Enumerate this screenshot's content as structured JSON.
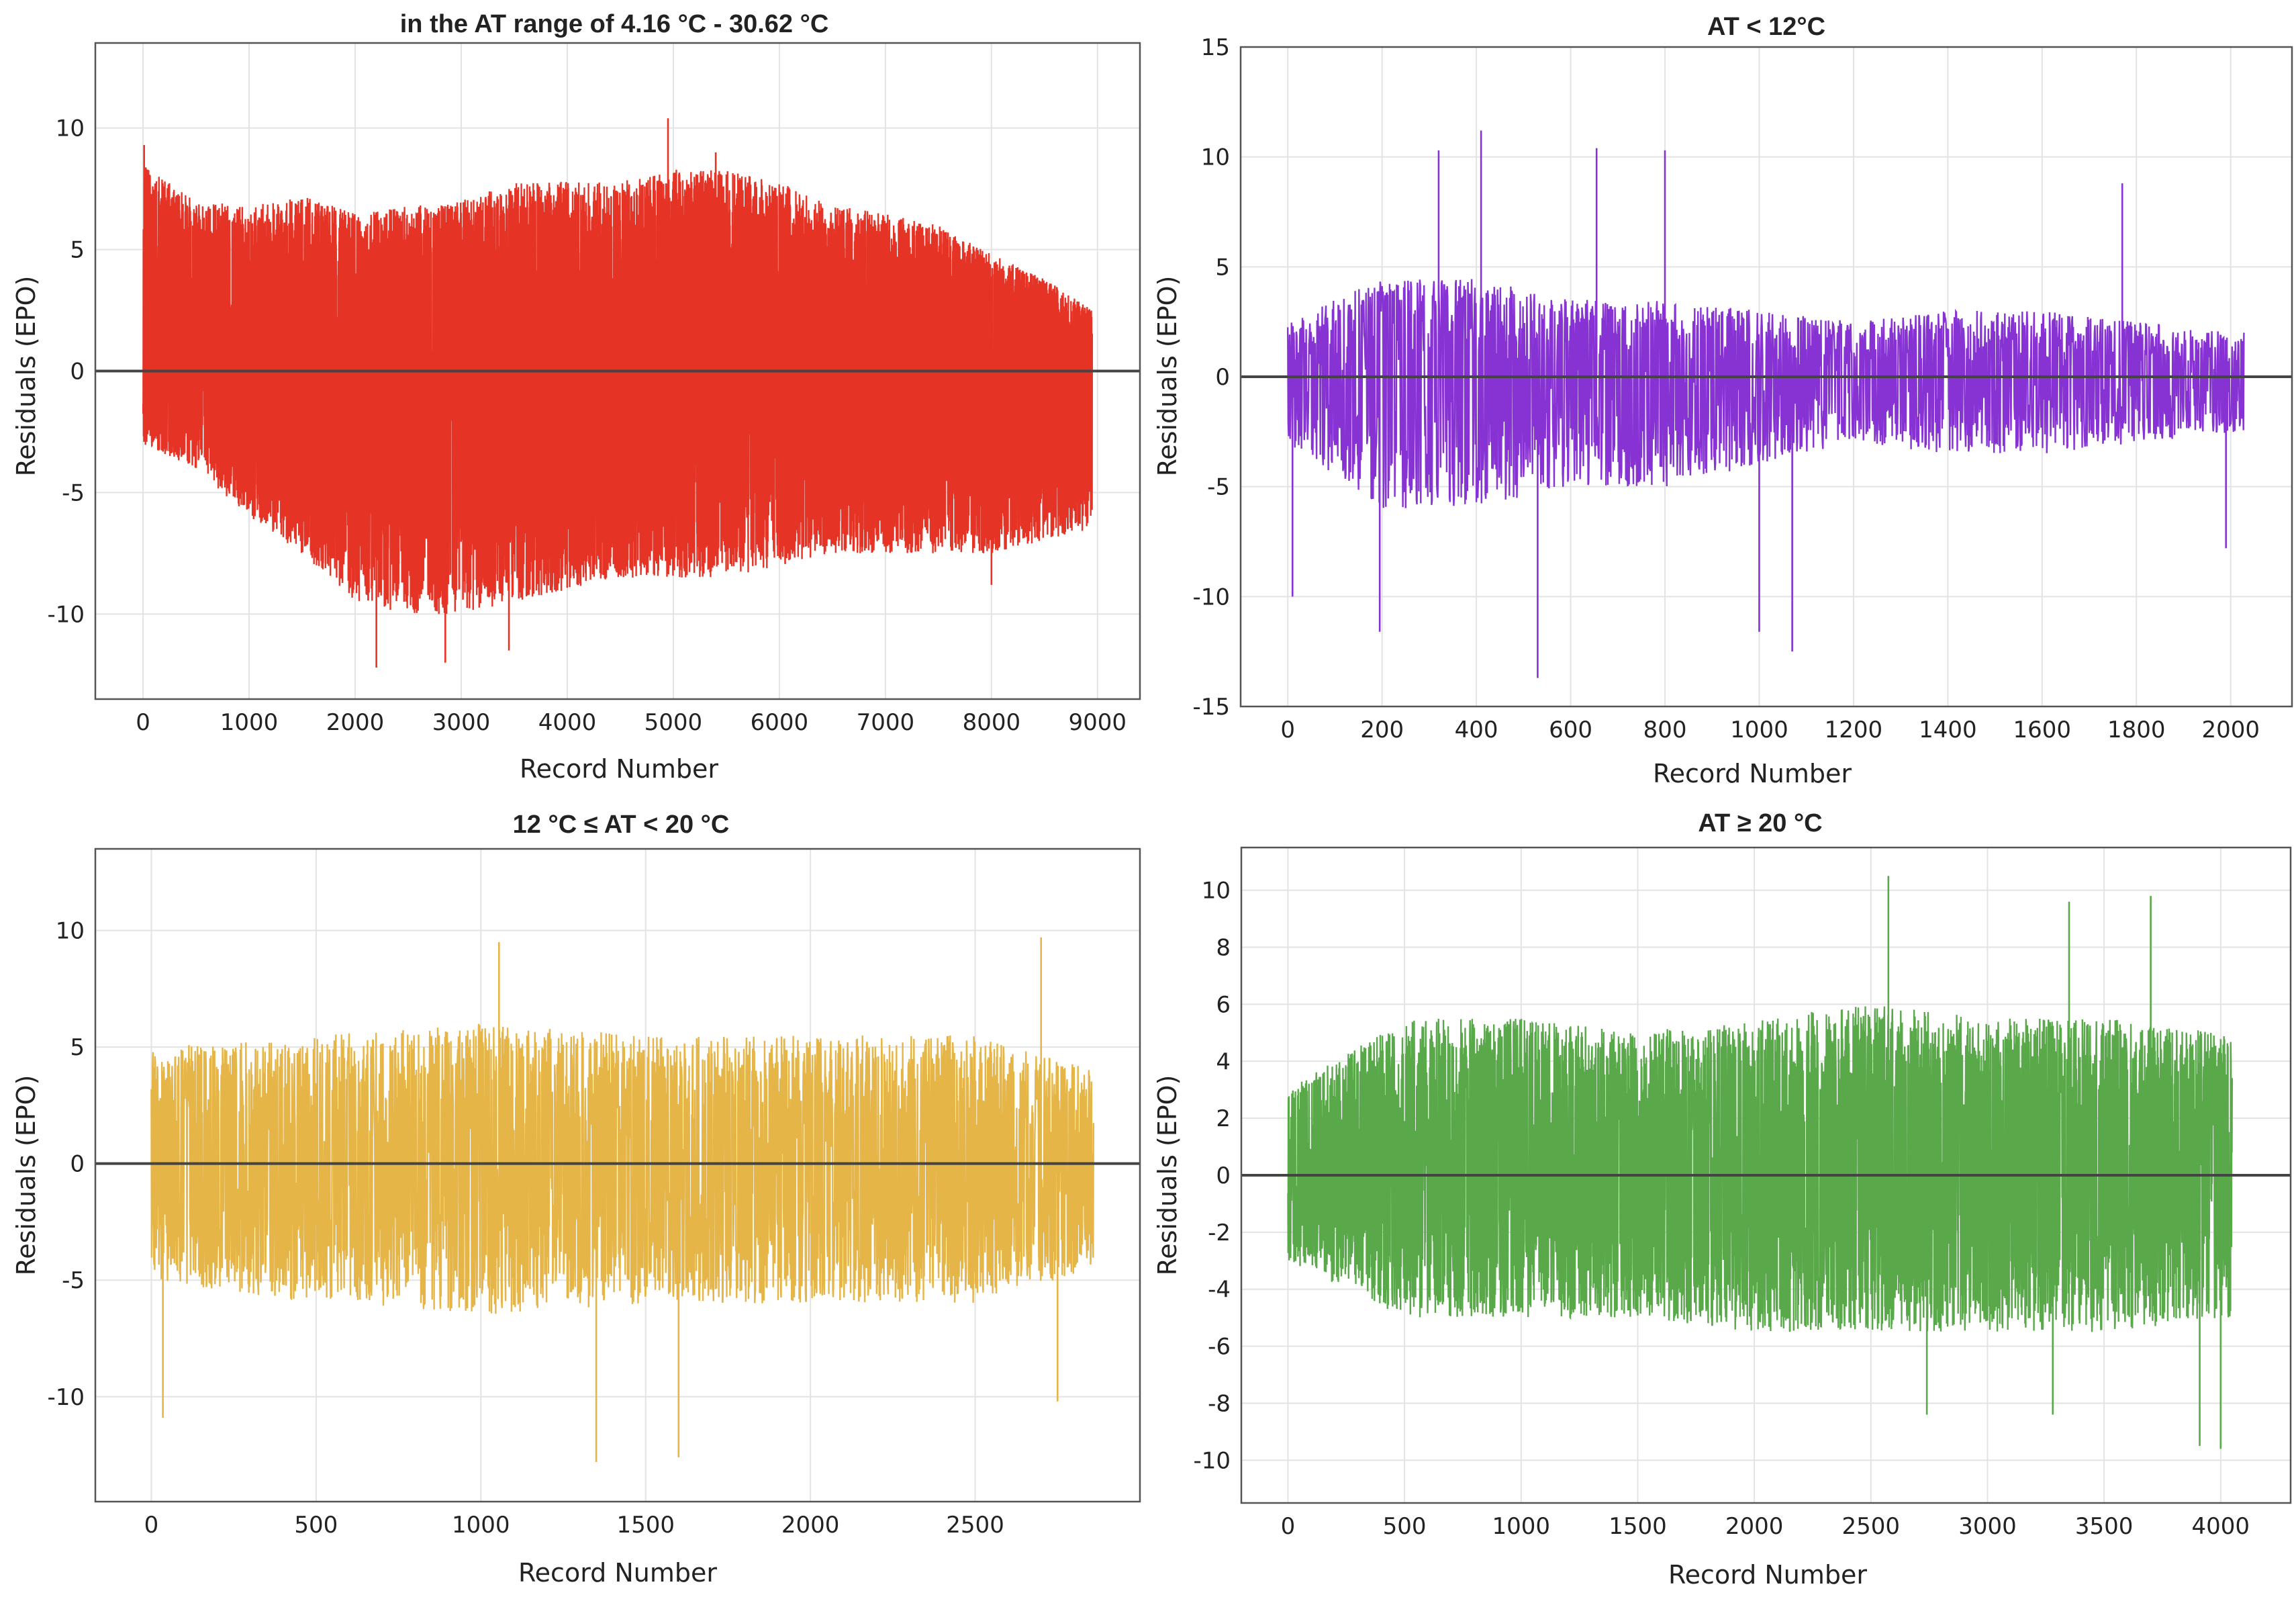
{
  "chart_data": [
    {
      "type": "line",
      "title": "in the AT range of 4.16 °C - 30.62 °C",
      "xlabel": "Record Number",
      "ylabel": "Residuals (EPO)",
      "color": "#E53326",
      "xlim": [
        -450,
        9400
      ],
      "ylim": [
        -13.5,
        13.5
      ],
      "xticks": [
        0,
        1000,
        2000,
        3000,
        4000,
        5000,
        6000,
        7000,
        8000,
        9000
      ],
      "yticks": [
        -10,
        -5,
        0,
        5,
        10
      ],
      "grid": true,
      "n_points": 8950,
      "density": 0.5,
      "envelope": [
        {
          "x": 0,
          "upper": 8.5,
          "lower": -3.0
        },
        {
          "x": 500,
          "upper": 7.0,
          "lower": -4.0
        },
        {
          "x": 1000,
          "upper": 6.8,
          "lower": -6.0
        },
        {
          "x": 1500,
          "upper": 7.2,
          "lower": -7.5
        },
        {
          "x": 2000,
          "upper": 6.5,
          "lower": -9.5
        },
        {
          "x": 2500,
          "upper": 6.8,
          "lower": -10.0
        },
        {
          "x": 3000,
          "upper": 7.0,
          "lower": -10.0
        },
        {
          "x": 3500,
          "upper": 7.8,
          "lower": -9.5
        },
        {
          "x": 4000,
          "upper": 7.8,
          "lower": -9.0
        },
        {
          "x": 4500,
          "upper": 7.8,
          "lower": -8.5
        },
        {
          "x": 5000,
          "upper": 8.3,
          "lower": -8.5
        },
        {
          "x": 5500,
          "upper": 8.3,
          "lower": -8.5
        },
        {
          "x": 6000,
          "upper": 7.8,
          "lower": -8.0
        },
        {
          "x": 6500,
          "upper": 6.8,
          "lower": -7.5
        },
        {
          "x": 7000,
          "upper": 6.5,
          "lower": -7.5
        },
        {
          "x": 7500,
          "upper": 6.0,
          "lower": -7.5
        },
        {
          "x": 8000,
          "upper": 4.8,
          "lower": -7.5
        },
        {
          "x": 8500,
          "upper": 3.8,
          "lower": -7.0
        },
        {
          "x": 8950,
          "upper": 2.5,
          "lower": -6.5
        }
      ],
      "extremes": [
        {
          "x": 10,
          "y": 9.3
        },
        {
          "x": 2200,
          "y": -12.2
        },
        {
          "x": 2850,
          "y": -12.0
        },
        {
          "x": 3450,
          "y": -11.5
        },
        {
          "x": 4950,
          "y": 10.4
        },
        {
          "x": 5400,
          "y": 9.0
        },
        {
          "x": 8000,
          "y": -8.8
        }
      ]
    },
    {
      "type": "line",
      "title": "AT < 12°C",
      "xlabel": "Record Number",
      "ylabel": "Residuals (EPO)",
      "color": "#8733D3",
      "xlim": [
        -100,
        2130
      ],
      "ylim": [
        -15,
        15
      ],
      "xticks": [
        0,
        200,
        400,
        600,
        800,
        1000,
        1200,
        1400,
        1600,
        1800,
        2000
      ],
      "yticks": [
        -15,
        -10,
        -5,
        0,
        5,
        10,
        15
      ],
      "grid": true,
      "n_points": 2030,
      "density": 0.55,
      "envelope": [
        {
          "x": 0,
          "upper": 2.5,
          "lower": -3.0
        },
        {
          "x": 200,
          "upper": 4.5,
          "lower": -6.0
        },
        {
          "x": 400,
          "upper": 4.5,
          "lower": -6.0
        },
        {
          "x": 600,
          "upper": 3.5,
          "lower": -5.0
        },
        {
          "x": 800,
          "upper": 3.5,
          "lower": -5.0
        },
        {
          "x": 1000,
          "upper": 3.0,
          "lower": -4.0
        },
        {
          "x": 1200,
          "upper": 2.5,
          "lower": -3.0
        },
        {
          "x": 1400,
          "upper": 3.0,
          "lower": -3.5
        },
        {
          "x": 1600,
          "upper": 3.0,
          "lower": -3.5
        },
        {
          "x": 1800,
          "upper": 2.5,
          "lower": -3.0
        },
        {
          "x": 2030,
          "upper": 2.0,
          "lower": -2.5
        }
      ],
      "extremes": [
        {
          "x": 10,
          "y": -10.0
        },
        {
          "x": 195,
          "y": -11.6
        },
        {
          "x": 320,
          "y": 10.3
        },
        {
          "x": 410,
          "y": 11.2
        },
        {
          "x": 530,
          "y": -13.7
        },
        {
          "x": 655,
          "y": 10.4
        },
        {
          "x": 800,
          "y": 10.3
        },
        {
          "x": 1000,
          "y": -11.6
        },
        {
          "x": 1070,
          "y": -12.5
        },
        {
          "x": 1770,
          "y": 8.8
        },
        {
          "x": 1990,
          "y": -7.8
        }
      ]
    },
    {
      "type": "line",
      "title": "12 °C ≤ AT < 20 °C",
      "xlabel": "Record Number",
      "ylabel": "Residuals (EPO)",
      "color": "#E5B548",
      "xlim": [
        -170,
        3000
      ],
      "ylim": [
        -14.5,
        13.5
      ],
      "xticks": [
        0,
        500,
        1000,
        1500,
        2000,
        2500
      ],
      "yticks": [
        -10,
        -5,
        0,
        5,
        10
      ],
      "grid": true,
      "n_points": 2860,
      "density": 0.55,
      "envelope": [
        {
          "x": 0,
          "upper": 5.0,
          "lower": -5.0
        },
        {
          "x": 500,
          "upper": 5.5,
          "lower": -6.0
        },
        {
          "x": 1000,
          "upper": 6.0,
          "lower": -6.5
        },
        {
          "x": 1500,
          "upper": 5.5,
          "lower": -6.0
        },
        {
          "x": 2000,
          "upper": 5.5,
          "lower": -6.0
        },
        {
          "x": 2500,
          "upper": 5.5,
          "lower": -6.0
        },
        {
          "x": 2860,
          "upper": 4.0,
          "lower": -4.5
        }
      ],
      "extremes": [
        {
          "x": 35,
          "y": -10.9
        },
        {
          "x": 1055,
          "y": 9.5
        },
        {
          "x": 1350,
          "y": -12.8
        },
        {
          "x": 1600,
          "y": -12.6
        },
        {
          "x": 2700,
          "y": 9.7
        },
        {
          "x": 2750,
          "y": -10.2
        }
      ]
    },
    {
      "type": "line",
      "title": "AT  ≥ 20 °C",
      "xlabel": "Record Number",
      "ylabel": "Residuals (EPO)",
      "color": "#59A84A",
      "xlim": [
        -200,
        4300
      ],
      "ylim": [
        -11.5,
        11.5
      ],
      "xticks": [
        0,
        500,
        1000,
        1500,
        2000,
        2500,
        3000,
        3500,
        4000
      ],
      "yticks": [
        -10,
        -8,
        -6,
        -4,
        -2,
        0,
        2,
        4,
        6,
        8,
        10
      ],
      "grid": true,
      "n_points": 4050,
      "density": 0.55,
      "envelope": [
        {
          "x": 0,
          "upper": 3.0,
          "lower": -3.0
        },
        {
          "x": 500,
          "upper": 5.5,
          "lower": -5.0
        },
        {
          "x": 1000,
          "upper": 5.5,
          "lower": -5.0
        },
        {
          "x": 1500,
          "upper": 5.0,
          "lower": -5.0
        },
        {
          "x": 2000,
          "upper": 5.5,
          "lower": -5.5
        },
        {
          "x": 2500,
          "upper": 6.0,
          "lower": -5.5
        },
        {
          "x": 3000,
          "upper": 5.5,
          "lower": -5.5
        },
        {
          "x": 3500,
          "upper": 5.5,
          "lower": -5.5
        },
        {
          "x": 4050,
          "upper": 5.0,
          "lower": -5.0
        }
      ],
      "extremes": [
        {
          "x": 2575,
          "y": 10.5
        },
        {
          "x": 2740,
          "y": -8.4
        },
        {
          "x": 3350,
          "y": 9.6
        },
        {
          "x": 3700,
          "y": 9.8
        },
        {
          "x": 3910,
          "y": -9.5
        },
        {
          "x": 4000,
          "y": -9.6
        },
        {
          "x": 3280,
          "y": -8.4
        }
      ]
    }
  ]
}
